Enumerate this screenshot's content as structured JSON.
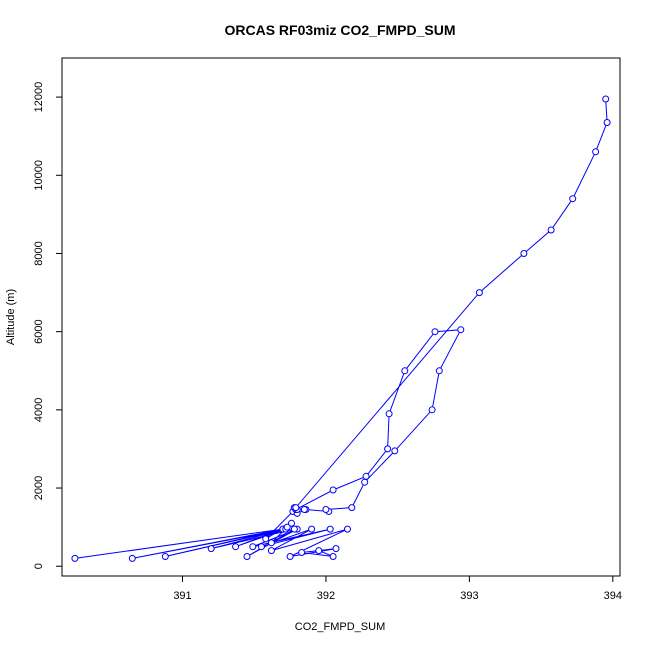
{
  "chart_data": {
    "type": "line",
    "title": "ORCAS RF03miz CO2_FMPD_SUM",
    "xlabel": "CO2_FMPD_SUM",
    "ylabel": "Altitude (m)",
    "xlim": [
      390.16,
      394.05
    ],
    "ylim": [
      -250,
      13000
    ],
    "xticks": [
      391,
      392,
      393,
      394
    ],
    "yticks": [
      0,
      2000,
      4000,
      6000,
      8000,
      10000,
      12000
    ],
    "grid": false,
    "legend": "none",
    "series": [
      {
        "marker": "open-circle",
        "color": "#0000ff",
        "points": [
          [
            391.95,
            400
          ],
          [
            392.05,
            250
          ],
          [
            391.83,
            350
          ],
          [
            392.07,
            450
          ],
          [
            391.75,
            250
          ],
          [
            392.15,
            950
          ],
          [
            391.62,
            400
          ],
          [
            391.9,
            950
          ],
          [
            391.55,
            500
          ],
          [
            392.03,
            950
          ],
          [
            391.49,
            500
          ],
          [
            391.8,
            950
          ],
          [
            391.45,
            250
          ],
          [
            391.78,
            950
          ],
          [
            391.2,
            450
          ],
          [
            391.72,
            950
          ],
          [
            390.65,
            200
          ],
          [
            391.7,
            950
          ],
          [
            390.25,
            200
          ],
          [
            391.7,
            950
          ],
          [
            390.88,
            250
          ],
          [
            391.72,
            950
          ],
          [
            391.37,
            500
          ],
          [
            391.73,
            1000
          ],
          [
            391.62,
            600
          ],
          [
            391.76,
            1100
          ],
          [
            391.58,
            700
          ],
          [
            391.77,
            1400
          ],
          [
            391.78,
            1500
          ],
          [
            391.8,
            1350
          ],
          [
            391.86,
            1450
          ],
          [
            392.02,
            1400
          ],
          [
            392.0,
            1450
          ],
          [
            392.18,
            1500
          ],
          [
            392.27,
            2150
          ],
          [
            392.48,
            2950
          ],
          [
            392.74,
            4000
          ],
          [
            392.79,
            5000
          ],
          [
            392.94,
            6050
          ],
          [
            392.76,
            6000
          ],
          [
            392.55,
            5000
          ],
          [
            392.44,
            3900
          ],
          [
            392.43,
            3000
          ],
          [
            392.28,
            2300
          ],
          [
            392.05,
            1950
          ],
          [
            391.79,
            1450
          ],
          [
            391.85,
            1450
          ],
          [
            391.8,
            1450
          ],
          [
            391.79,
            1500
          ],
          [
            393.07,
            7000
          ],
          [
            393.38,
            8000
          ],
          [
            393.57,
            8600
          ],
          [
            393.72,
            9400
          ],
          [
            393.88,
            10600
          ],
          [
            393.96,
            11350
          ],
          [
            393.95,
            11950
          ]
        ]
      }
    ]
  }
}
